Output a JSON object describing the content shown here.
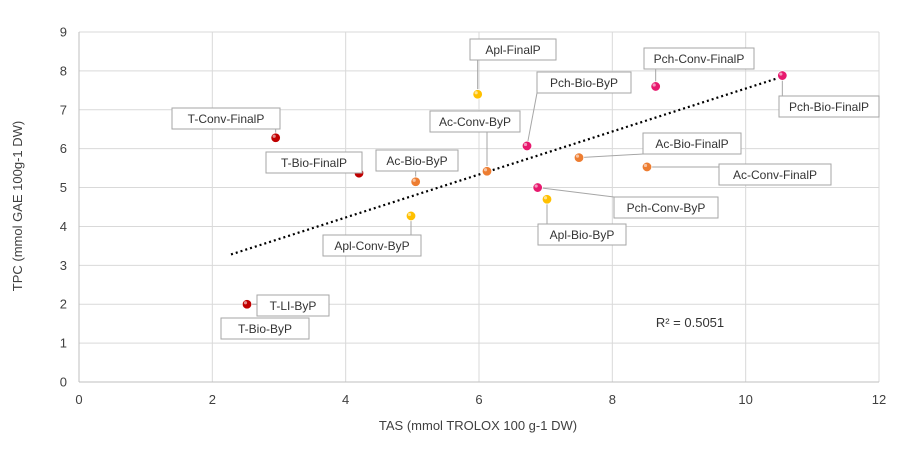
{
  "chart_data": {
    "type": "scatter",
    "title": "",
    "xlabel": "TAS (mmol TROLOX 100 g-1 DW)",
    "ylabel": "TPC (mmol GAE 100g-1 DW)",
    "xlim": [
      0,
      12
    ],
    "ylim": [
      0,
      9
    ],
    "x_ticks": [
      "0",
      "2",
      "4",
      "6",
      "8",
      "10",
      "12"
    ],
    "y_ticks": [
      "0",
      "1",
      "2",
      "3",
      "4",
      "5",
      "6",
      "7",
      "8",
      "9"
    ],
    "grid": true,
    "points": [
      {
        "label": "T-Bio-ByP",
        "x": 2.28,
        "y": 1.45,
        "color": "#c00000"
      },
      {
        "label": "T-LI-ByP",
        "x": 2.52,
        "y": 2.0,
        "color": "#c00000"
      },
      {
        "label": "T-Conv-FinalP",
        "x": 2.95,
        "y": 6.28,
        "color": "#c00000"
      },
      {
        "label": "T-Bio-FinalP",
        "x": 4.2,
        "y": 5.37,
        "color": "#c00000"
      },
      {
        "label": "Ac-Bio-ByP",
        "x": 5.05,
        "y": 5.15,
        "color": "#ed7d31"
      },
      {
        "label": "Apl-Conv-ByP",
        "x": 4.98,
        "y": 4.27,
        "color": "#ffc000"
      },
      {
        "label": "Apl-FinalP",
        "x": 5.98,
        "y": 7.4,
        "color": "#ffc000"
      },
      {
        "label": "Ac-Conv-ByP",
        "x": 6.12,
        "y": 5.42,
        "color": "#ed7d31"
      },
      {
        "label": "Pch-Bio-ByP",
        "x": 6.72,
        "y": 6.07,
        "color": "#e7196e"
      },
      {
        "label": "Pch-Conv-ByP",
        "x": 6.88,
        "y": 5.0,
        "color": "#e7196e"
      },
      {
        "label": "Apl-Bio-ByP",
        "x": 7.02,
        "y": 4.7,
        "color": "#ffc000"
      },
      {
        "label": "Ac-Bio-FinalP",
        "x": 7.5,
        "y": 5.77,
        "color": "#ed7d31"
      },
      {
        "label": "Ac-Conv-FinalP",
        "x": 8.52,
        "y": 5.53,
        "color": "#ed7d31"
      },
      {
        "label": "Pch-Conv-FinalP",
        "x": 8.65,
        "y": 7.6,
        "color": "#e7196e"
      },
      {
        "label": "Pch-Bio-FinalP",
        "x": 10.55,
        "y": 7.88,
        "color": "#e7196e"
      }
    ],
    "trendline": {
      "type": "linear",
      "x": [
        2.28,
        10.55
      ],
      "y": [
        3.28,
        7.85
      ],
      "r2_label": "R² = 0.5051"
    }
  }
}
